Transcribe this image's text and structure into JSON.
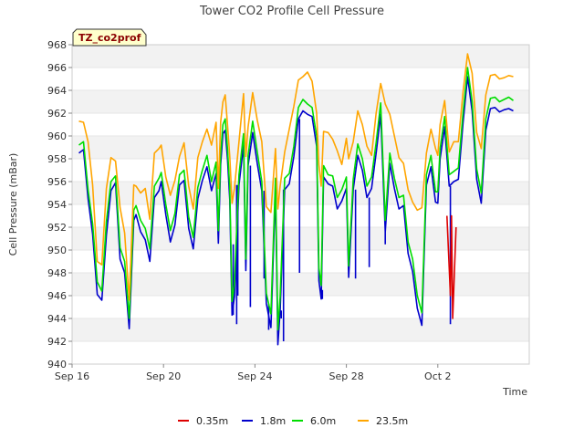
{
  "chart_data": {
    "type": "line",
    "title": "Tower CO2 Profile Cell Pressure",
    "tag": "TZ_co2prof",
    "xlabel": "Time",
    "ylabel": "Cell Pressure (mBar)",
    "ylim": [
      940,
      968
    ],
    "yticks": [
      940,
      942,
      944,
      946,
      948,
      950,
      952,
      954,
      956,
      958,
      960,
      962,
      964,
      966,
      968
    ],
    "xlim_days": [
      0,
      20
    ],
    "xticks": [
      {
        "label": "Sep 16",
        "day": 0
      },
      {
        "label": "Sep 20",
        "day": 4
      },
      {
        "label": "Sep 24",
        "day": 8
      },
      {
        "label": "Sep 28",
        "day": 12
      },
      {
        "label": "Oct 2",
        "day": 16
      }
    ],
    "grid": "horizontal bands",
    "legend_position": "bottom",
    "series": [
      {
        "name": "0.35m",
        "color": "#dd0000",
        "x": [
          16.4,
          16.55,
          16.6,
          16.65,
          16.8
        ],
        "y": [
          953,
          946,
          953,
          944,
          952
        ]
      },
      {
        "name": "1.8m",
        "color": "#0000cc",
        "x": [
          0.3,
          0.5,
          0.7,
          0.9,
          1.1,
          1.3,
          1.5,
          1.7,
          1.9,
          2.1,
          2.3,
          2.5,
          2.7,
          2.8,
          3.0,
          3.2,
          3.4,
          3.6,
          3.8,
          3.9,
          4.1,
          4.3,
          4.5,
          4.7,
          4.9,
          5.1,
          5.3,
          5.5,
          5.7,
          5.9,
          6.1,
          6.3,
          6.4,
          6.5,
          6.6,
          6.7,
          6.8,
          6.9,
          7.0,
          7.1,
          7.3,
          7.5,
          7.6,
          7.7,
          7.9,
          8.1,
          8.3,
          8.5,
          8.7,
          8.9,
          9.0,
          9.1,
          9.3,
          9.5,
          9.7,
          9.9,
          10.1,
          10.3,
          10.5,
          10.7,
          10.8,
          10.9,
          11.0,
          11.2,
          11.4,
          11.6,
          11.8,
          12.0,
          12.1,
          12.3,
          12.5,
          12.7,
          12.9,
          13.1,
          13.3,
          13.5,
          13.7,
          13.9,
          14.1,
          14.3,
          14.5,
          14.7,
          14.9,
          15.1,
          15.3,
          15.5,
          15.7,
          15.9,
          16.0,
          16.1,
          16.3,
          16.5,
          16.7,
          16.9,
          17.1,
          17.3,
          17.5,
          17.7,
          17.9,
          18.1,
          18.3,
          18.5,
          18.7,
          18.9,
          19.1,
          19.3
        ],
        "y": [
          958.5,
          958.8,
          954.5,
          951.4,
          946.1,
          945.6,
          951.3,
          955.2,
          955.9,
          949.2,
          948.0,
          943.1,
          952.6,
          953.1,
          951.6,
          950.9,
          949.0,
          954.6,
          955.2,
          956.0,
          953.1,
          950.7,
          952.2,
          955.7,
          956.1,
          951.9,
          950.1,
          954.5,
          956.1,
          957.3,
          955.2,
          956.7,
          950.6,
          957.5,
          960.2,
          960.5,
          958.0,
          954.4,
          944.3,
          945.9,
          955.7,
          959.2,
          948.2,
          957.4,
          960.3,
          957.6,
          955.2,
          945.3,
          943.2,
          955.3,
          941.7,
          944.7,
          955.3,
          955.8,
          958.2,
          961.5,
          962.2,
          961.9,
          961.7,
          959.1,
          947.3,
          945.7,
          956.4,
          955.8,
          955.6,
          953.6,
          954.3,
          955.4,
          947.6,
          955.3,
          958.3,
          957.0,
          954.6,
          955.4,
          958.5,
          961.9,
          951.6,
          957.6,
          955.4,
          953.6,
          953.9,
          949.7,
          948.1,
          944.9,
          943.4,
          955.7,
          957.3,
          954.2,
          954.1,
          958.0,
          960.8,
          955.6,
          956.0,
          956.2,
          961.1,
          965.2,
          962.2,
          956.2,
          954.1,
          960.5,
          962.4,
          962.5,
          962.1,
          962.3,
          962.4,
          962.2
        ],
        "spikes": [
          {
            "x": 7.05,
            "y": 950.5
          },
          {
            "x": 7.2,
            "y": 943.5
          },
          {
            "x": 7.25,
            "y": 946.0
          },
          {
            "x": 7.8,
            "y": 945.0
          },
          {
            "x": 8.4,
            "y": 947.5
          },
          {
            "x": 8.6,
            "y": 943.0
          },
          {
            "x": 9.15,
            "y": 944.0
          },
          {
            "x": 9.25,
            "y": 942.0
          },
          {
            "x": 9.95,
            "y": 948.0
          },
          {
            "x": 10.95,
            "y": 946.5
          },
          {
            "x": 12.4,
            "y": 947.5
          },
          {
            "x": 13.0,
            "y": 948.5
          },
          {
            "x": 13.7,
            "y": 950.5
          },
          {
            "x": 16.55,
            "y": 943.5
          }
        ]
      },
      {
        "name": "6.0m",
        "color": "#00dd00",
        "x": [
          0.3,
          0.5,
          0.7,
          0.9,
          1.1,
          1.3,
          1.5,
          1.7,
          1.9,
          2.1,
          2.3,
          2.5,
          2.7,
          2.8,
          3.0,
          3.2,
          3.4,
          3.6,
          3.8,
          3.9,
          4.1,
          4.3,
          4.5,
          4.7,
          4.9,
          5.1,
          5.3,
          5.5,
          5.7,
          5.9,
          6.1,
          6.3,
          6.4,
          6.5,
          6.6,
          6.7,
          6.8,
          6.9,
          7.0,
          7.1,
          7.3,
          7.5,
          7.6,
          7.7,
          7.9,
          8.1,
          8.3,
          8.5,
          8.7,
          8.9,
          9.0,
          9.1,
          9.3,
          9.5,
          9.7,
          9.9,
          10.1,
          10.3,
          10.5,
          10.7,
          10.8,
          10.9,
          11.0,
          11.2,
          11.4,
          11.6,
          11.8,
          12.0,
          12.1,
          12.3,
          12.5,
          12.7,
          12.9,
          13.1,
          13.3,
          13.5,
          13.7,
          13.9,
          14.1,
          14.3,
          14.5,
          14.7,
          14.9,
          15.1,
          15.3,
          15.5,
          15.7,
          15.9,
          16.0,
          16.1,
          16.3,
          16.5,
          16.7,
          16.9,
          17.1,
          17.3,
          17.5,
          17.7,
          17.9,
          18.1,
          18.3,
          18.5,
          18.7,
          18.9,
          19.1,
          19.3
        ],
        "y": [
          959.2,
          959.5,
          955.3,
          952.3,
          947.2,
          946.4,
          952.5,
          956.0,
          956.5,
          950.2,
          949.0,
          944.0,
          953.5,
          953.9,
          952.6,
          951.9,
          950.1,
          955.6,
          956.3,
          956.8,
          954.0,
          951.7,
          953.2,
          956.6,
          957.0,
          952.9,
          951.1,
          955.5,
          957.0,
          958.3,
          956.0,
          957.7,
          951.7,
          958.4,
          961.0,
          961.5,
          958.9,
          955.4,
          945.5,
          947.0,
          956.6,
          960.2,
          949.2,
          958.3,
          961.3,
          958.6,
          956.0,
          946.2,
          944.4,
          956.3,
          943.0,
          945.9,
          956.3,
          956.7,
          959.1,
          962.5,
          963.2,
          962.8,
          962.5,
          960.0,
          948.4,
          946.9,
          957.4,
          956.6,
          956.5,
          954.6,
          955.3,
          956.4,
          948.6,
          956.2,
          959.3,
          958.0,
          955.6,
          956.4,
          959.4,
          962.9,
          952.6,
          958.5,
          956.3,
          954.6,
          954.8,
          950.7,
          949.2,
          946.0,
          944.5,
          956.6,
          958.3,
          955.1,
          955.1,
          958.9,
          961.7,
          956.6,
          956.9,
          957.2,
          962.0,
          966.0,
          963.0,
          957.1,
          955.0,
          961.5,
          963.3,
          963.4,
          963.0,
          963.2,
          963.4,
          963.1
        ]
      },
      {
        "name": "23.5m",
        "color": "#ffa500",
        "x": [
          0.3,
          0.5,
          0.7,
          0.9,
          1.1,
          1.3,
          1.5,
          1.7,
          1.9,
          2.1,
          2.3,
          2.5,
          2.7,
          2.8,
          3.0,
          3.2,
          3.4,
          3.6,
          3.8,
          3.9,
          4.1,
          4.3,
          4.5,
          4.7,
          4.9,
          5.1,
          5.3,
          5.5,
          5.7,
          5.9,
          6.1,
          6.3,
          6.4,
          6.5,
          6.6,
          6.7,
          6.8,
          6.9,
          7.0,
          7.1,
          7.3,
          7.5,
          7.6,
          7.7,
          7.9,
          8.1,
          8.3,
          8.5,
          8.7,
          8.9,
          9.0,
          9.1,
          9.3,
          9.5,
          9.7,
          9.9,
          10.1,
          10.3,
          10.5,
          10.7,
          10.8,
          10.9,
          11.0,
          11.2,
          11.4,
          11.6,
          11.8,
          12.0,
          12.1,
          12.3,
          12.5,
          12.7,
          12.9,
          13.1,
          13.3,
          13.5,
          13.7,
          13.9,
          14.1,
          14.3,
          14.5,
          14.7,
          14.9,
          15.1,
          15.3,
          15.5,
          15.7,
          15.9,
          16.0,
          16.1,
          16.3,
          16.5,
          16.7,
          16.9,
          17.1,
          17.3,
          17.5,
          17.7,
          17.9,
          18.1,
          18.3,
          18.5,
          18.7,
          18.9,
          19.1,
          19.3
        ],
        "y": [
          961.3,
          961.2,
          959.5,
          955.7,
          949.0,
          948.7,
          955.4,
          958.1,
          957.8,
          953.7,
          951.5,
          945.6,
          955.7,
          955.6,
          955.0,
          955.4,
          952.7,
          958.5,
          958.9,
          959.2,
          956.4,
          954.8,
          956.1,
          958.2,
          959.4,
          955.6,
          953.6,
          958.1,
          959.5,
          960.6,
          959.2,
          961.2,
          955.4,
          961.2,
          963.0,
          963.6,
          961.0,
          958.2,
          954.1,
          955.4,
          959.5,
          963.7,
          958.2,
          960.8,
          963.8,
          961.4,
          959.5,
          953.8,
          953.3,
          958.9,
          953.6,
          955.6,
          958.6,
          960.6,
          962.6,
          964.9,
          965.2,
          965.6,
          964.8,
          962.0,
          957.5,
          955.6,
          960.4,
          960.3,
          959.7,
          958.7,
          957.5,
          959.8,
          958.0,
          959.5,
          962.2,
          961.0,
          959.1,
          958.3,
          962.0,
          964.6,
          962.8,
          961.9,
          960.0,
          958.1,
          957.6,
          955.3,
          954.2,
          953.5,
          953.7,
          958.5,
          960.6,
          958.9,
          958.3,
          961.0,
          963.1,
          958.6,
          959.5,
          959.5,
          963.8,
          967.2,
          965.5,
          960.3,
          958.9,
          963.6,
          965.3,
          965.4,
          965.0,
          965.1,
          965.3,
          965.2
        ]
      }
    ]
  }
}
